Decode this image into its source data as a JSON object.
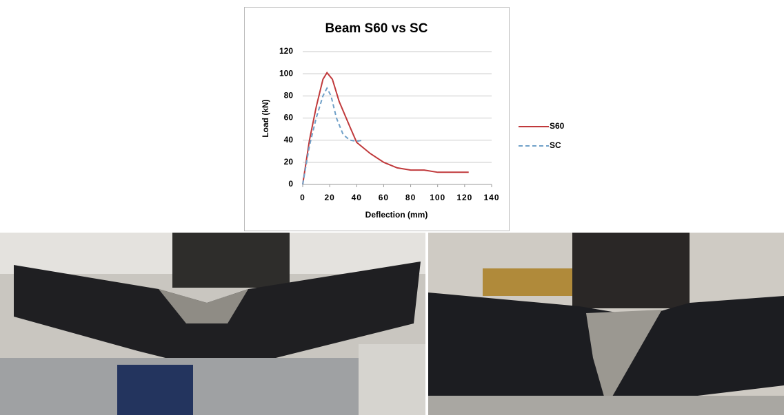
{
  "chart_data": {
    "type": "line",
    "title": "Beam S60 vs SC",
    "xlabel": "Deflection (mm)",
    "ylabel": "Load (kN)",
    "xlim": [
      0,
      140
    ],
    "xticks": [
      0,
      20,
      40,
      60,
      80,
      100,
      120,
      140
    ],
    "ylim": [
      0,
      120
    ],
    "yticks": [
      0,
      20,
      40,
      60,
      80,
      100,
      120
    ],
    "grid": true,
    "legend": "right",
    "series": [
      {
        "name": "S60",
        "color": "#c0393b",
        "style": "solid",
        "x": [
          0,
          5,
          10,
          15,
          18,
          22,
          27,
          35,
          40,
          50,
          60,
          70,
          80,
          90,
          100,
          110,
          123
        ],
        "values": [
          0,
          40,
          70,
          95,
          101,
          95,
          75,
          52,
          38,
          28,
          20,
          15,
          13,
          13,
          11,
          11,
          11
        ]
      },
      {
        "name": "SC",
        "color": "#6fa0c8",
        "style": "dashed",
        "x": [
          0,
          5,
          10,
          15,
          18,
          21,
          25,
          30,
          35,
          40,
          45
        ],
        "values": [
          0,
          35,
          60,
          80,
          87,
          80,
          60,
          45,
          40,
          39,
          40
        ]
      }
    ]
  }
}
